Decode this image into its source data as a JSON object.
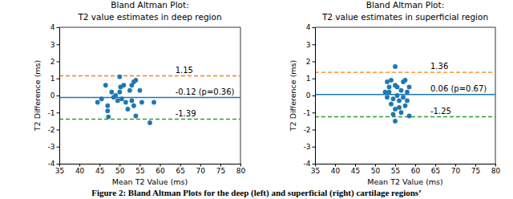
{
  "chart_data": [
    {
      "type": "scatter",
      "title": "Bland Altman Plot:",
      "subtitle": "T2 value estimates in deep region",
      "x_label": "Mean T2 Value (ms)",
      "y_label": "T2 Difference (ms)",
      "color": "#1f77b4",
      "marker": "circle",
      "x": [
        44.5,
        45.5,
        46.5,
        47,
        47,
        47.2,
        48,
        48.5,
        49,
        49.5,
        50,
        50.2,
        50.5,
        51,
        51.5,
        52.5,
        53,
        53,
        53.5,
        53.5,
        54,
        54,
        55,
        55.5,
        57.5,
        58.5,
        50,
        52
      ],
      "y": [
        -0.4,
        -0.2,
        0.6,
        -0.6,
        -0.9,
        -1.25,
        0.2,
        -0.1,
        0,
        -0.3,
        1.1,
        0.5,
        -0.2,
        0.6,
        -0.4,
        0.3,
        0.6,
        -0.3,
        0.8,
        -0.6,
        0.9,
        -1.2,
        0.3,
        -0.4,
        -1.6,
        -0.4,
        0.2,
        -0.8
      ],
      "xlim": [
        35,
        80
      ],
      "ylim": [
        -4,
        4
      ],
      "xticks": [
        35,
        40,
        45,
        50,
        55,
        60,
        65,
        70,
        75,
        80
      ],
      "yticks": [
        -4,
        -3,
        -2,
        -1,
        0,
        1,
        2,
        3,
        4
      ],
      "grid": false,
      "reference_lines": [
        {
          "value": 1.15,
          "label": "1.15",
          "color": "#ff7f0e",
          "line_style": "dashed"
        },
        {
          "value": -0.12,
          "label": "-0.12 (p=0.36)",
          "color": "#1f77b4",
          "line_style": "solid"
        },
        {
          "value": -1.39,
          "label": "-1.39",
          "color": "#2ca02c",
          "line_style": "dashed"
        }
      ]
    },
    {
      "type": "scatter",
      "title": "Bland Altman Plot:",
      "subtitle": "T2 value estimates in superficial region",
      "x_label": "Mean T2 Value (ms)",
      "y_label": "T2 Difference (ms)",
      "color": "#1f77b4",
      "marker": "circle",
      "x": [
        52.5,
        53,
        53,
        53.5,
        53.5,
        54,
        54,
        54.5,
        54.5,
        55,
        55,
        55,
        55,
        55.5,
        55.5,
        56,
        56,
        56.5,
        56.5,
        57,
        57,
        57.5,
        57.5,
        58,
        58,
        58.5,
        58.5
      ],
      "y": [
        0.2,
        0.8,
        -0.1,
        0.5,
        0.2,
        0.9,
        -0.5,
        -0.2,
        -1.1,
        1.7,
        0.6,
        -0.8,
        -1.5,
        0.5,
        0,
        -0.7,
        -0.3,
        0.3,
        -1.0,
        0.8,
        -0.1,
        0.9,
        -0.6,
        0.2,
        -0.3,
        0.5,
        -1.2
      ],
      "xlim": [
        35,
        80
      ],
      "ylim": [
        -4,
        4
      ],
      "xticks": [
        35,
        40,
        45,
        50,
        55,
        60,
        65,
        70,
        75,
        80
      ],
      "yticks": [
        -4,
        -3,
        -2,
        -1,
        0,
        1,
        2,
        3,
        4
      ],
      "grid": false,
      "reference_lines": [
        {
          "value": 1.36,
          "label": "1.36",
          "color": "#ff7f0e",
          "line_style": "dashed"
        },
        {
          "value": 0.06,
          "label": "0.06 (p=0.67)",
          "color": "#1f77b4",
          "line_style": "solid"
        },
        {
          "value": -1.25,
          "label": "-1.25",
          "color": "#2ca02c",
          "line_style": "dashed"
        }
      ]
    }
  ],
  "caption": "Figure 2: Bland Altman Plots for the deep (left) and superficial (right) cartilage regions’"
}
